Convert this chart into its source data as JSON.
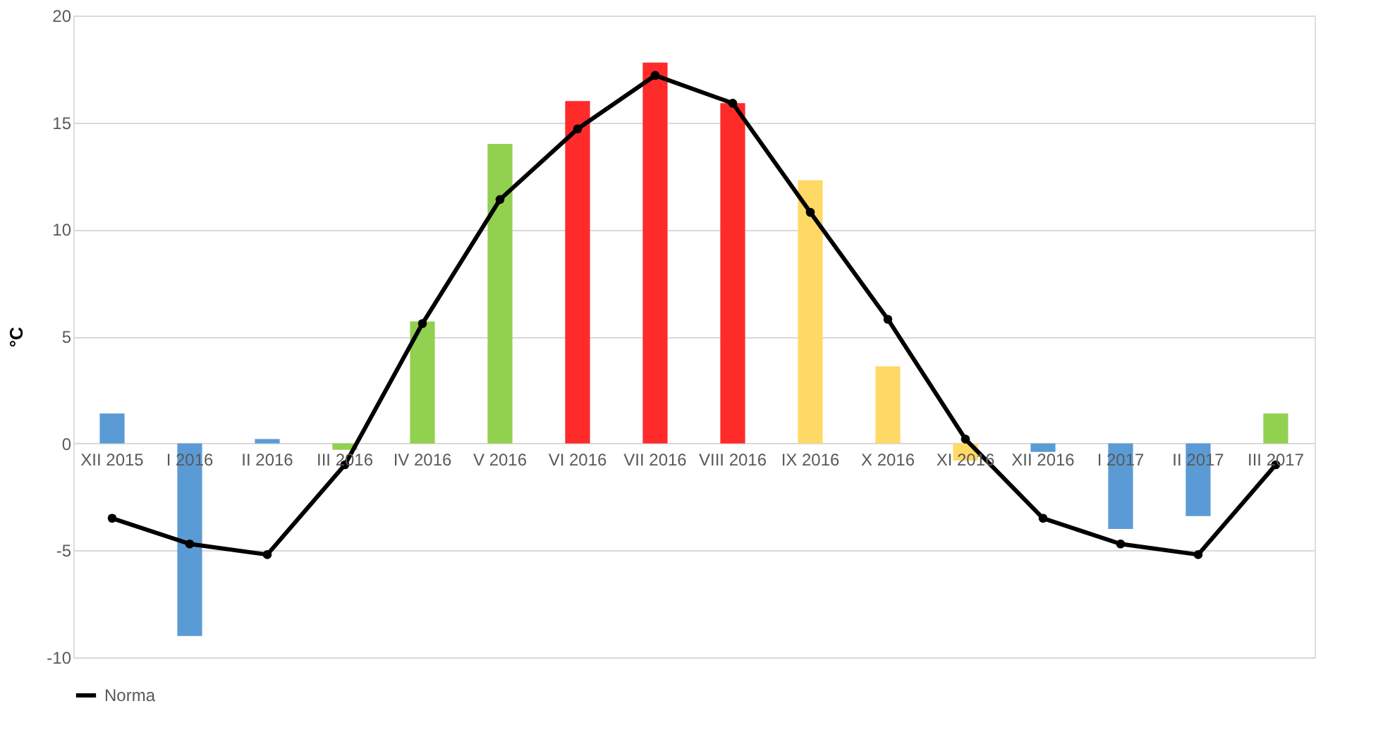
{
  "chart_data": {
    "type": "bar",
    "ylabel": "°C",
    "categories": [
      "XII 2015",
      "I 2016",
      "II 2016",
      "III 2016",
      "IV 2016",
      "V 2016",
      "VI 2016",
      "VII 2016",
      "VIII 2016",
      "IX 2016",
      "X 2016",
      "XI 2016",
      "XII 2016",
      "I 2017",
      "II 2017",
      "III 2017"
    ],
    "series": [
      {
        "colors": [
          "#5b9bd5",
          "#5b9bd5",
          "#5b9bd5",
          "#92d050",
          "#92d050",
          "#92d050",
          "#ff2a2a",
          "#ff2a2a",
          "#ff2a2a",
          "#ffd966",
          "#ffd966",
          "#ffd966",
          "#5b9bd5",
          "#5b9bd5",
          "#5b9bd5",
          "#92d050"
        ],
        "values": [
          1.4,
          -9.0,
          0.2,
          -0.3,
          5.7,
          14.0,
          16.0,
          17.8,
          15.9,
          12.3,
          3.6,
          -0.8,
          -0.4,
          -4.0,
          -3.4,
          1.4
        ]
      },
      {
        "type": "line",
        "name": "Norma",
        "color": "#000000",
        "marker": "circle",
        "line_style": "solid",
        "values": [
          -3.5,
          -4.7,
          -5.2,
          -1.0,
          5.6,
          11.4,
          14.7,
          17.2,
          15.9,
          10.8,
          5.8,
          0.2,
          -3.5,
          -4.7,
          -5.2,
          -1.0
        ]
      }
    ],
    "ylim": [
      -10,
      20
    ],
    "yticks": [
      -10,
      -5,
      0,
      5,
      10,
      15,
      20
    ],
    "grid": "y",
    "legend": "bottom"
  }
}
